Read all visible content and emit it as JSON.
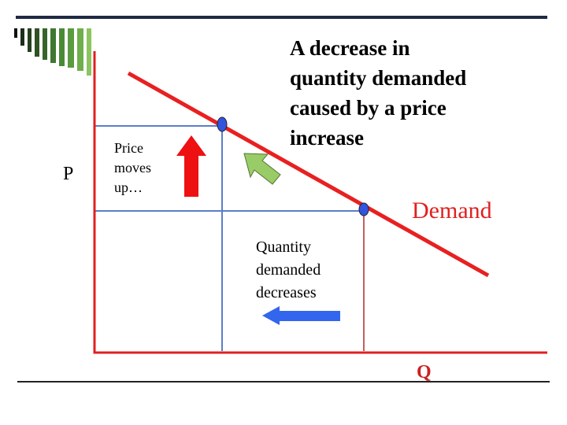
{
  "axis_labels": {
    "price": "P",
    "quantity": "Q"
  },
  "price_note": [
    "Price",
    "moves",
    "up…"
  ],
  "headline": [
    "A decrease in",
    "quantity demanded",
    "caused by a price",
    "increase"
  ],
  "curve_label": "Demand",
  "quantity_note": [
    "Quantity",
    "demanded",
    "decreases"
  ]
}
